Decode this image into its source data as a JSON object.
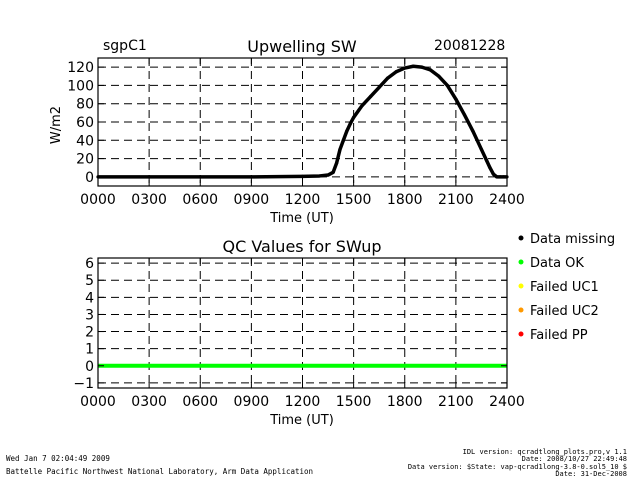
{
  "header": {
    "site": "sgpC1",
    "date": "20081228"
  },
  "legend": [
    {
      "label": "Data missing",
      "color": "#000000"
    },
    {
      "label": "Data OK",
      "color": "#00ff00"
    },
    {
      "label": "Failed UC1",
      "color": "#ffff00"
    },
    {
      "label": "Failed UC2",
      "color": "#ff9900"
    },
    {
      "label": "Failed PP",
      "color": "#ff0000"
    }
  ],
  "footer": {
    "left1": "Wed Jan  7 02:04:49 2009",
    "left2": "Battelle Pacific Northwest National Laboratory, Arm Data Application",
    "right1": "IDL version: qcradtlong_plots.pro,v 1.1",
    "right2": "Date: 2008/10/27 22:49:48",
    "right3": "Data version: $State: vap-qcrad1long-3.8-0.sol5_10 $",
    "right4": "Date: 31-Dec-2008"
  },
  "chart_data": [
    {
      "type": "scatter",
      "title": "Upwelling SW",
      "xlabel": "Time (UT)",
      "ylabel": "W/m2",
      "xlim": [
        0,
        2400
      ],
      "ylim": [
        -10,
        130
      ],
      "xticks": [
        "0000",
        "0300",
        "0600",
        "0900",
        "1200",
        "1500",
        "1800",
        "2100",
        "2400"
      ],
      "xtick_values": [
        0,
        300,
        600,
        900,
        1200,
        1500,
        1800,
        2100,
        2400
      ],
      "yticks": [
        0,
        20,
        40,
        60,
        80,
        100,
        120
      ],
      "grid": true,
      "series": [
        {
          "color": "#000000",
          "x": [
            0,
            300,
            600,
            900,
            1200,
            1300,
            1350,
            1380,
            1400,
            1420,
            1440,
            1460,
            1480,
            1500,
            1550,
            1600,
            1650,
            1700,
            1750,
            1800,
            1850,
            1900,
            1950,
            2000,
            2050,
            2100,
            2150,
            2200,
            2250,
            2280,
            2300,
            2320,
            2340,
            2360,
            2380,
            2400
          ],
          "y": [
            0,
            0,
            0,
            0,
            0.5,
            1,
            2,
            5,
            15,
            30,
            40,
            50,
            58,
            65,
            78,
            88,
            98,
            108,
            115,
            119,
            121,
            120,
            117,
            110,
            100,
            85,
            68,
            50,
            30,
            18,
            10,
            3,
            0,
            0,
            0,
            0
          ]
        }
      ]
    },
    {
      "type": "scatter",
      "title": "QC Values for SWup",
      "xlabel": "Time (UT)",
      "ylabel": "",
      "xlim": [
        0,
        2400
      ],
      "ylim": [
        -1.3,
        6.3
      ],
      "xticks": [
        "0000",
        "0300",
        "0600",
        "0900",
        "1200",
        "1500",
        "1800",
        "2100",
        "2400"
      ],
      "xtick_values": [
        0,
        300,
        600,
        900,
        1200,
        1500,
        1800,
        2100,
        2400
      ],
      "yticks": [
        -1,
        0,
        1,
        2,
        3,
        4,
        5,
        6
      ],
      "grid": true,
      "series": [
        {
          "color": "#00ff00",
          "x": [
            0,
            2400
          ],
          "y": [
            0,
            0
          ]
        }
      ]
    }
  ]
}
